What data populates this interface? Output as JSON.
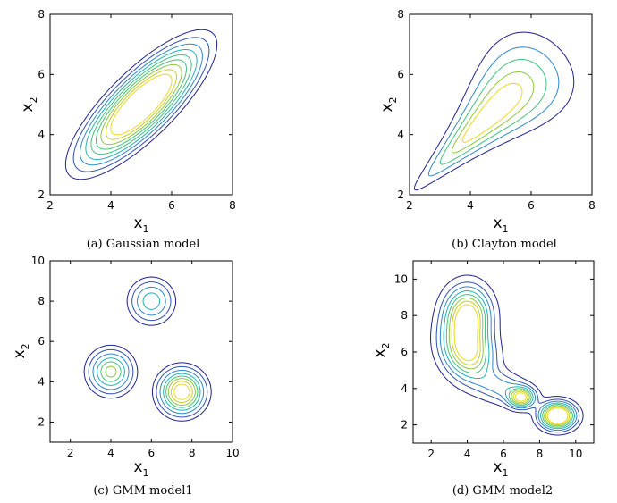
{
  "colors": {
    "levels": [
      "#1f1f8f",
      "#2b4fb0",
      "#2f86c8",
      "#21b0b8",
      "#3fc27a",
      "#8cc63f",
      "#c9cc2a",
      "#eed81e"
    ]
  },
  "chart_data": [
    {
      "type": "contour",
      "panel": "a",
      "caption": "(a) Gaussian model",
      "xlabel": "x",
      "xlabel_sub": "1",
      "ylabel": "x",
      "ylabel_sub": "2",
      "xlim": [
        2,
        8
      ],
      "ylim": [
        2,
        8
      ],
      "xticks": [
        2,
        4,
        6,
        8
      ],
      "yticks": [
        2,
        4,
        6,
        8
      ],
      "grid": false,
      "components": [
        {
          "mean": [
            5.0,
            5.0
          ],
          "sd": [
            1.0,
            1.0
          ],
          "rho": 0.8,
          "weight": 1.0
        }
      ],
      "levels": [
        0.012,
        0.022,
        0.035,
        0.05,
        0.068,
        0.088,
        0.11,
        0.135,
        0.16
      ]
    },
    {
      "type": "contour",
      "panel": "b",
      "caption": "(b) Clayton model",
      "xlabel": "x",
      "xlabel_sub": "1",
      "ylabel": "x",
      "ylabel_sub": "2",
      "xlim": [
        2,
        8
      ],
      "ylim": [
        2,
        8
      ],
      "xticks": [
        2,
        4,
        6,
        8
      ],
      "yticks": [
        2,
        4,
        6,
        8
      ],
      "grid": false,
      "copula": {
        "family": "clayton",
        "theta": 2.0,
        "margins": {
          "mean": [
            5.0,
            5.0
          ],
          "sd": [
            1.0,
            1.0
          ]
        }
      },
      "levels": [
        0.012,
        0.035,
        0.07,
        0.12,
        0.17
      ]
    },
    {
      "type": "contour",
      "panel": "c",
      "caption": "(c) GMM model1",
      "xlabel": "x",
      "xlabel_sub": "1",
      "ylabel": "x",
      "ylabel_sub": "2",
      "xlim": [
        1,
        10
      ],
      "ylim": [
        1,
        10
      ],
      "xticks": [
        2,
        4,
        6,
        8,
        10
      ],
      "yticks": [
        2,
        4,
        6,
        8,
        10
      ],
      "grid": false,
      "components": [
        {
          "mean": [
            6.0,
            8.0
          ],
          "sd": [
            0.6,
            0.6
          ],
          "rho": 0.0,
          "weight": 0.2
        },
        {
          "mean": [
            4.0,
            4.5
          ],
          "sd": [
            0.6,
            0.6
          ],
          "rho": 0.0,
          "weight": 0.3
        },
        {
          "mean": [
            7.5,
            3.5
          ],
          "sd": [
            0.6,
            0.6
          ],
          "rho": 0.0,
          "weight": 0.5
        }
      ],
      "levels": [
        0.012,
        0.025,
        0.045,
        0.07,
        0.095,
        0.12,
        0.15,
        0.18
      ]
    },
    {
      "type": "contour",
      "panel": "d",
      "caption": "(d) GMM model2",
      "xlabel": "x",
      "xlabel_sub": "1",
      "ylabel": "x",
      "ylabel_sub": "2",
      "xlim": [
        1,
        11
      ],
      "ylim": [
        1,
        11
      ],
      "xticks": [
        2,
        4,
        6,
        8,
        10
      ],
      "yticks": [
        2,
        4,
        6,
        8,
        10
      ],
      "grid": false,
      "components": [
        {
          "mean": [
            4.0,
            8.0
          ],
          "sd": [
            0.8,
            1.0
          ],
          "rho": 0.0,
          "weight": 0.35
        },
        {
          "mean": [
            4.0,
            6.0
          ],
          "sd": [
            0.9,
            1.0
          ],
          "rho": -0.2,
          "weight": 0.35
        },
        {
          "mean": [
            6.0,
            4.0
          ],
          "sd": [
            1.0,
            0.6
          ],
          "rho": -0.3,
          "weight": 0.08
        },
        {
          "mean": [
            7.0,
            3.5
          ],
          "sd": [
            0.45,
            0.35
          ],
          "rho": 0.0,
          "weight": 0.06
        },
        {
          "mean": [
            9.0,
            2.5
          ],
          "sd": [
            0.6,
            0.45
          ],
          "rho": 0.0,
          "weight": 0.16
        }
      ],
      "levels": [
        0.006,
        0.013,
        0.02,
        0.028,
        0.036,
        0.044,
        0.052,
        0.06
      ]
    }
  ]
}
